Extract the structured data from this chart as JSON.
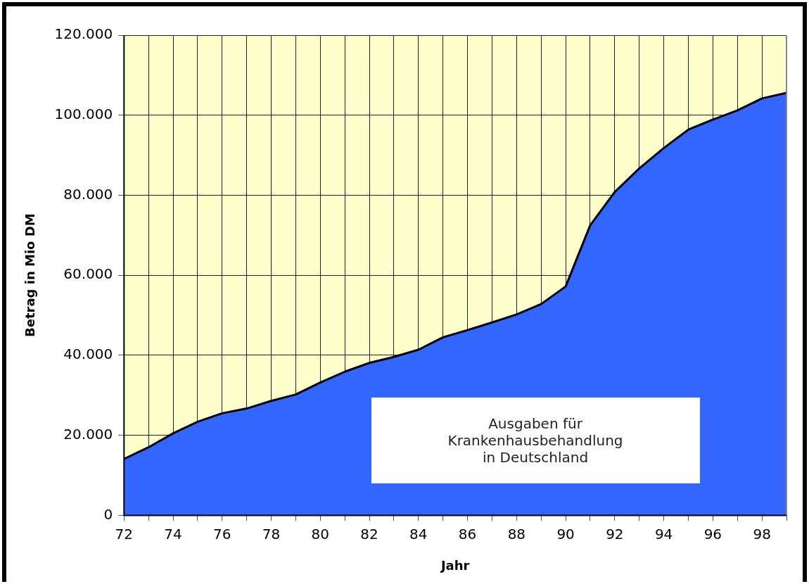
{
  "chart_data": {
    "type": "area",
    "xlabel": "Jahr",
    "ylabel": "Betrag in Mio DM",
    "x": [
      72,
      73,
      74,
      75,
      76,
      77,
      78,
      79,
      80,
      81,
      82,
      83,
      84,
      85,
      86,
      87,
      88,
      89,
      90,
      91,
      92,
      93,
      94,
      95,
      96,
      97,
      98,
      99
    ],
    "series": [
      {
        "color": "#3366ff",
        "values": [
          14100,
          17000,
          20500,
          23400,
          25500,
          26700,
          28600,
          30200,
          33200,
          35900,
          38100,
          39600,
          41400,
          44500,
          46300,
          48200,
          50200,
          52800,
          57200,
          72500,
          80800,
          86700,
          91800,
          96400,
          98900,
          101200,
          104200,
          105600
        ]
      }
    ],
    "xlim": [
      72,
      99
    ],
    "xticks": [
      72,
      {
        "value": 73,
        "label": null
      },
      74,
      {
        "value": 75,
        "label": null
      },
      76,
      {
        "value": 77,
        "label": null
      },
      78,
      {
        "value": 79,
        "label": null
      },
      80,
      {
        "value": 81,
        "label": null
      },
      82,
      {
        "value": 83,
        "label": null
      },
      84,
      {
        "value": 85,
        "label": null
      },
      86,
      {
        "value": 87,
        "label": null
      },
      88,
      {
        "value": 89,
        "label": null
      },
      90,
      {
        "value": 91,
        "label": null
      },
      92,
      {
        "value": 93,
        "label": null
      },
      94,
      {
        "value": 95,
        "label": null
      },
      96,
      {
        "value": 97,
        "label": null
      },
      98,
      {
        "value": 99,
        "label": null
      }
    ],
    "ylim": [
      0,
      120000
    ],
    "yticks": [
      0,
      {
        "value": 20000,
        "label": "20.000"
      },
      {
        "value": 40000,
        "label": "40.000"
      },
      {
        "value": 60000,
        "label": "60.000"
      },
      {
        "value": 80000,
        "label": "80.000"
      },
      {
        "value": 100000,
        "label": "100.000"
      },
      {
        "value": 120000,
        "label": "120.000"
      }
    ],
    "grid": true,
    "legend": false,
    "marker": "none",
    "line_style": "solid",
    "annotations": [
      "Ausgaben für\nKrankenhausbehandlung\nin Deutschland"
    ]
  }
}
